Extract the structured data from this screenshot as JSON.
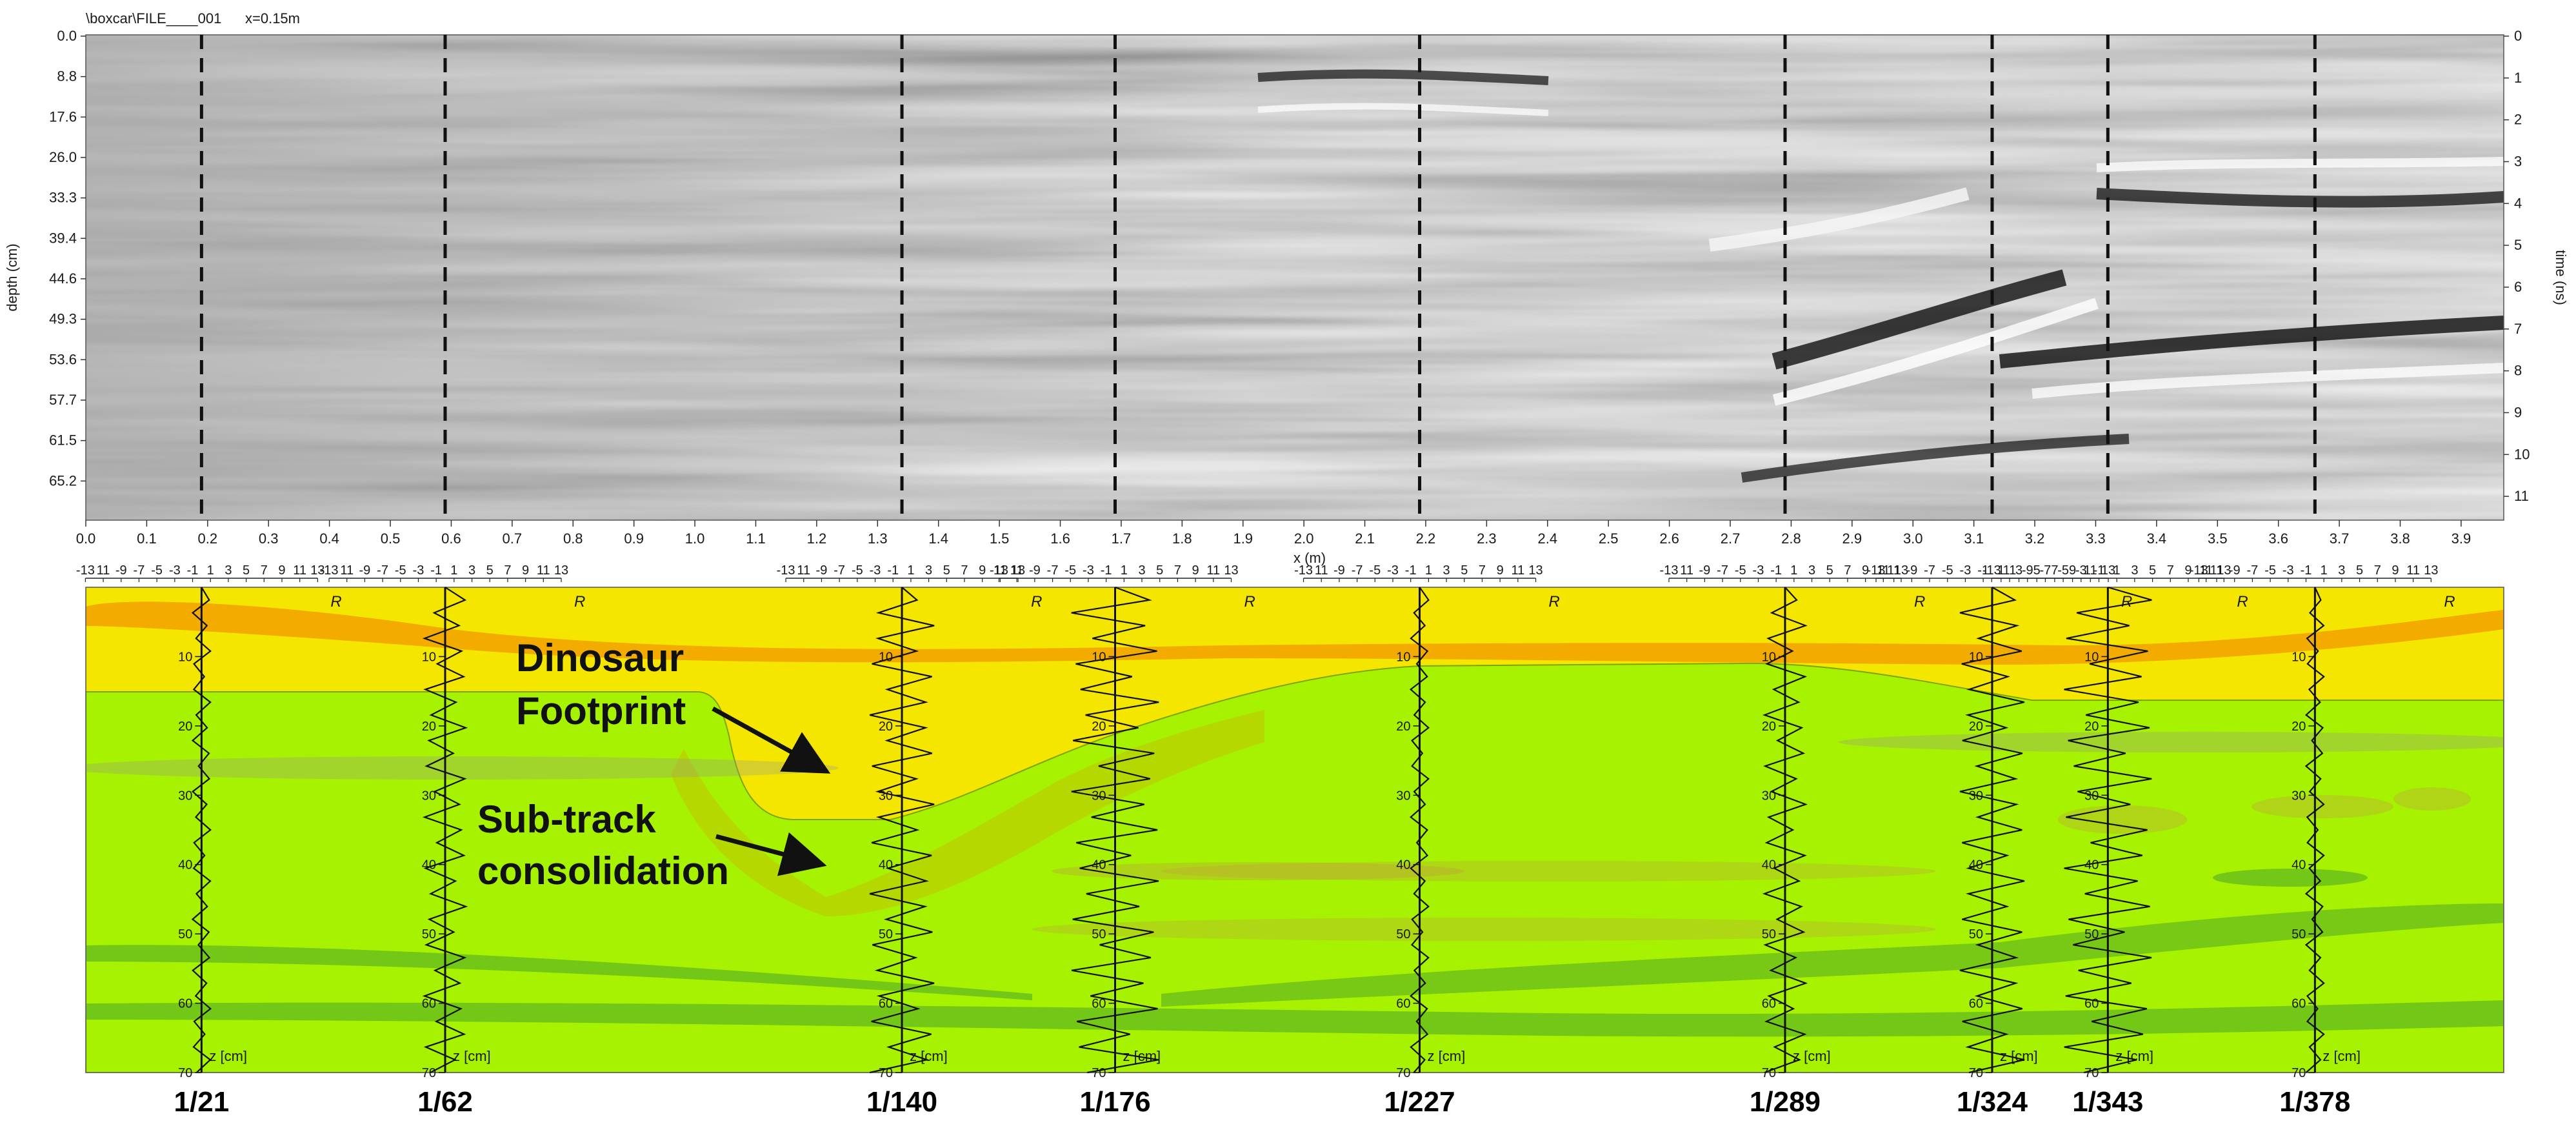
{
  "radargram": {
    "file_path": "\\boxcar\\FILE____001",
    "trace_spacing": "x=0.15m",
    "left_axis_label": "depth (cm)",
    "right_axis_label": "time (ns)",
    "depth_ticks": [
      "0.0",
      "8.8",
      "17.6",
      "26.0",
      "33.3",
      "39.4",
      "44.6",
      "49.3",
      "53.6",
      "57.7",
      "61.5",
      "65.2"
    ],
    "time_ticks": [
      "0",
      "1",
      "2",
      "3",
      "4",
      "5",
      "6",
      "7",
      "8",
      "9",
      "10",
      "11"
    ],
    "x_axis_label": "x (m)",
    "x_ticks": [
      "0.0",
      "0.1",
      "0.2",
      "0.3",
      "0.4",
      "0.5",
      "0.6",
      "0.7",
      "0.8",
      "0.9",
      "1.0",
      "1.1",
      "1.2",
      "1.3",
      "1.4",
      "1.5",
      "1.6",
      "1.7",
      "1.8",
      "1.9",
      "2.0",
      "2.1",
      "2.2",
      "2.3",
      "2.4",
      "2.5",
      "2.6",
      "2.7",
      "2.8",
      "2.9",
      "3.0",
      "3.1",
      "3.2",
      "3.3",
      "3.4",
      "3.5",
      "3.6",
      "3.7",
      "3.8",
      "3.9"
    ],
    "x_range": [
      0,
      3.97
    ],
    "section_positions_m": [
      0.19,
      0.59,
      1.34,
      1.69,
      2.19,
      2.79,
      3.13,
      3.32,
      3.66
    ]
  },
  "profile_panel": {
    "r_label": "R",
    "z_label": "z [cm]",
    "z_ticks": [
      "10",
      "20",
      "30",
      "40",
      "50",
      "60",
      "70"
    ],
    "r_scale_ticks": [
      "-13",
      "11",
      "-9",
      "-7",
      "-5",
      "-3",
      "-1",
      "1",
      "3",
      "5",
      "7",
      "9",
      "11",
      "13"
    ],
    "callouts": {
      "footprint_line1": "Dinosaur",
      "footprint_line2": "Footprint",
      "subtrack_line1": "Sub-track",
      "subtrack_line2": "consolidation"
    },
    "colors": {
      "sand_yellow": "#f5e600",
      "clay_green": "#a6f200",
      "orange_band": "#f2a000",
      "dark_green_band": "#6ec21a"
    }
  },
  "section_labels": [
    "1/21",
    "1/62",
    "1/140",
    "1/176",
    "1/227",
    "1/289",
    "1/324",
    "1/343",
    "1/378"
  ]
}
